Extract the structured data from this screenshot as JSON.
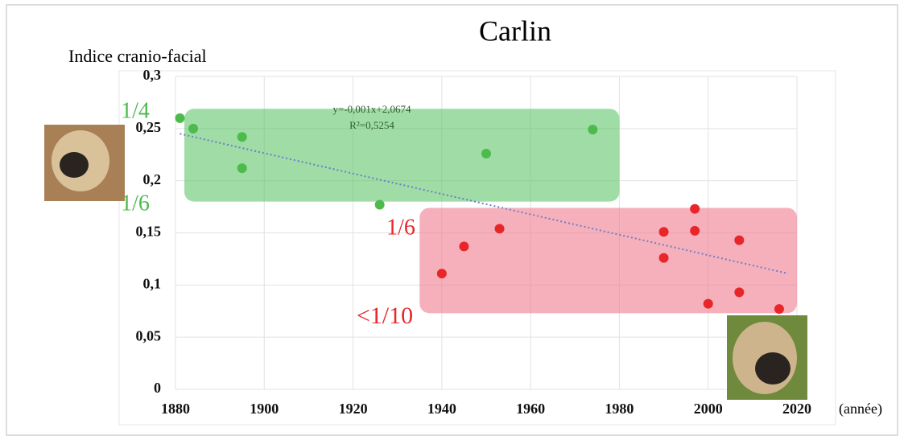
{
  "chart_data": {
    "type": "scatter",
    "title": "Carlin",
    "y_label": "Indice cranio-facial",
    "x_label": "(année)",
    "xlim": [
      1880,
      2020
    ],
    "xticks": [
      1880,
      1900,
      1920,
      1940,
      1960,
      1980,
      2000,
      2020
    ],
    "ylim": [
      0,
      0.3
    ],
    "yticks": [
      0,
      {
        "value": 0.05,
        "label": "0,05"
      },
      {
        "value": 0.1,
        "label": "0,1"
      },
      {
        "value": 0.15,
        "label": "0,15"
      },
      {
        "value": 0.2,
        "label": "0,2"
      },
      {
        "value": 0.25,
        "label": "0,25"
      },
      {
        "value": 0.3,
        "label": "0,3"
      }
    ],
    "grid": true,
    "regions": [
      {
        "color": "#5fc46a",
        "xlim": [
          1882,
          1980
        ],
        "ylim": [
          0.18,
          0.269
        ]
      },
      {
        "color": "#f07c8e",
        "xlim": [
          1935,
          2020
        ],
        "ylim": [
          0.073,
          0.174
        ]
      }
    ],
    "series": [
      {
        "color": "#4cbb4c",
        "x": [
          1881,
          1884,
          1895,
          1895,
          1926,
          1950,
          1974
        ],
        "values": [
          0.26,
          0.25,
          0.242,
          0.212,
          0.177,
          0.226,
          0.249
        ]
      },
      {
        "color": "#e8262a",
        "x": [
          1940,
          1945,
          1953,
          1990,
          1990,
          1997,
          1997,
          2007,
          2007,
          2000,
          2016
        ],
        "values": [
          0.111,
          0.137,
          0.154,
          0.151,
          0.126,
          0.173,
          0.152,
          0.143,
          0.093,
          0.082,
          0.077
        ]
      }
    ],
    "trendline": {
      "color": "#6a7fc8",
      "x": [
        1881,
        2018
      ],
      "values": [
        0.245,
        0.111
      ]
    },
    "annotations": [
      {
        "text": "1/4",
        "color": "#4cbb4c"
      },
      {
        "text": "1/6",
        "color": "#4cbb4c"
      },
      {
        "text": "1/6",
        "color": "#e8262a"
      },
      {
        "text": "<1/10",
        "color": "#e8262a"
      },
      {
        "text": "y=-0,001x+2,0674",
        "color": "#2f5e2f"
      },
      {
        "text": "R²=0,5254",
        "color": "#2f5e2f"
      }
    ]
  }
}
